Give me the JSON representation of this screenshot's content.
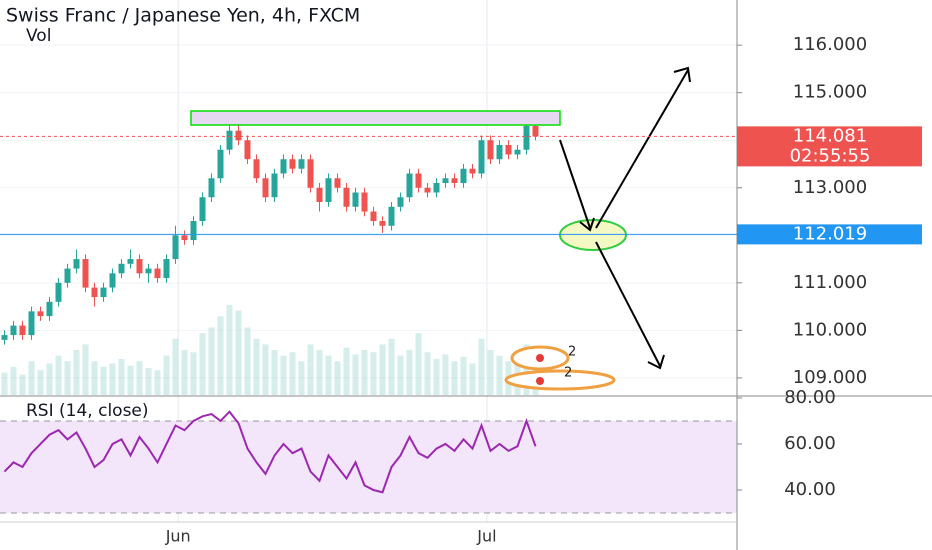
{
  "chart_data": [
    {
      "type": "candlestick",
      "title": "Swiss Franc / Japanese Yen, 4h, FXCM",
      "subtitle": "Vol",
      "up_color": "#26a69a",
      "down_color": "#ef5350",
      "volume_color": "#b2dfdb",
      "open": [
        109.8,
        109.9,
        110.1,
        109.9,
        110.4,
        110.3,
        110.6,
        111.0,
        111.3,
        111.5,
        110.9,
        110.7,
        110.9,
        111.2,
        111.4,
        111.5,
        111.2,
        111.3,
        111.1,
        111.5,
        112.0,
        111.9,
        112.3,
        112.8,
        113.2,
        113.8,
        114.2,
        114.0,
        113.6,
        113.2,
        112.8,
        113.3,
        113.6,
        113.4,
        113.6,
        113.0,
        112.7,
        113.2,
        113.0,
        112.6,
        112.9,
        112.5,
        112.3,
        112.2,
        112.6,
        112.8,
        113.3,
        113.0,
        112.9,
        113.1,
        113.2,
        113.1,
        113.4,
        113.3,
        114.0,
        113.6,
        113.9,
        113.7,
        113.8,
        114.3
      ],
      "high": [
        110.0,
        110.2,
        110.2,
        110.5,
        110.5,
        110.7,
        111.1,
        111.4,
        111.7,
        111.6,
        111.0,
        111.0,
        111.3,
        111.5,
        111.7,
        111.6,
        111.4,
        111.4,
        111.6,
        112.2,
        112.1,
        112.4,
        112.9,
        113.3,
        113.9,
        114.4,
        114.55,
        114.1,
        113.7,
        113.3,
        113.4,
        113.7,
        113.7,
        113.7,
        113.7,
        113.1,
        113.3,
        113.3,
        113.1,
        113.0,
        113.0,
        112.6,
        112.4,
        112.7,
        112.9,
        113.4,
        113.4,
        113.1,
        113.2,
        113.3,
        113.3,
        113.5,
        113.5,
        114.1,
        114.1,
        114.0,
        114.0,
        113.9,
        114.4,
        114.5
      ],
      "low": [
        109.7,
        109.8,
        109.8,
        109.8,
        110.2,
        110.2,
        110.5,
        110.9,
        111.2,
        110.8,
        110.5,
        110.6,
        110.8,
        111.1,
        111.3,
        111.1,
        111.0,
        111.0,
        111.0,
        111.4,
        111.8,
        111.8,
        112.2,
        112.7,
        113.1,
        113.7,
        113.9,
        113.5,
        113.1,
        112.7,
        112.7,
        113.2,
        113.3,
        113.3,
        112.9,
        112.5,
        112.6,
        112.9,
        112.5,
        112.5,
        112.4,
        112.2,
        112.05,
        112.1,
        112.5,
        112.7,
        112.9,
        112.8,
        112.8,
        113.0,
        113.0,
        113.0,
        113.2,
        113.2,
        113.5,
        113.5,
        113.6,
        113.6,
        113.7,
        114.0
      ],
      "close": [
        109.9,
        110.1,
        109.9,
        110.4,
        110.3,
        110.6,
        111.0,
        111.3,
        111.5,
        110.9,
        110.7,
        110.9,
        111.2,
        111.4,
        111.5,
        111.2,
        111.3,
        111.1,
        111.5,
        112.0,
        111.9,
        112.3,
        112.8,
        113.2,
        113.8,
        114.2,
        114.0,
        113.6,
        113.2,
        112.8,
        113.3,
        113.6,
        113.4,
        113.6,
        113.0,
        112.7,
        113.2,
        113.0,
        112.6,
        112.9,
        112.5,
        112.3,
        112.2,
        112.6,
        112.8,
        113.3,
        113.0,
        112.9,
        113.1,
        113.2,
        113.1,
        113.4,
        113.3,
        114.0,
        113.6,
        113.9,
        113.7,
        113.8,
        114.3,
        114.081
      ],
      "volume": [
        20,
        25,
        18,
        30,
        22,
        28,
        35,
        30,
        40,
        45,
        30,
        25,
        28,
        32,
        26,
        30,
        24,
        22,
        35,
        50,
        40,
        38,
        55,
        60,
        70,
        80,
        75,
        60,
        50,
        45,
        40,
        35,
        38,
        30,
        45,
        40,
        35,
        30,
        42,
        36,
        40,
        38,
        45,
        50,
        35,
        40,
        55,
        38,
        32,
        36,
        30,
        34,
        28,
        50,
        40,
        35,
        30,
        32,
        45,
        25
      ],
      "xlim": [
        -0.5,
        81.39
      ],
      "ylim": [
        108.64,
        116.95
      ],
      "xticks": [
        {
          "value": 19.3,
          "label": "Jun"
        },
        {
          "value": 53.6,
          "label": "Jul"
        }
      ],
      "yticks": [
        {
          "value": 109,
          "label": "109.000"
        },
        {
          "value": 110,
          "label": "110.000"
        },
        {
          "value": 111,
          "label": "111.000"
        },
        {
          "value": 112,
          "label": "112.000"
        },
        {
          "value": 113,
          "label": "113.000"
        },
        {
          "value": 114,
          "label": "114.000"
        },
        {
          "value": 115,
          "label": "115.000"
        },
        {
          "value": 116,
          "label": "116.000"
        }
      ],
      "last_price": 114.081,
      "countdown": "02:55:55",
      "horizontal_line": 112.019,
      "badges": [
        "2",
        "2"
      ],
      "grid": true
    },
    {
      "type": "line",
      "title": "RSI (14, close)",
      "color": "#9c27b0",
      "values": [
        48,
        52,
        50,
        56,
        60,
        64,
        66,
        62,
        65,
        58,
        50,
        53,
        60,
        62,
        55,
        63,
        58,
        52,
        60,
        68,
        66,
        70,
        72,
        73,
        70,
        74,
        69,
        58,
        52,
        47,
        55,
        60,
        56,
        58,
        48,
        44,
        55,
        50,
        45,
        52,
        42,
        40,
        39,
        50,
        55,
        63,
        56,
        54,
        58,
        60,
        57,
        62,
        58,
        68,
        57,
        60,
        57,
        59,
        70,
        59
      ],
      "ylim": [
        26.1,
        80.4
      ],
      "band": [
        30,
        70
      ],
      "band_color": "#f3e5fa",
      "yticks": [
        {
          "value": 40,
          "label": "40.00"
        },
        {
          "value": 60,
          "label": "60.00"
        },
        {
          "value": 80,
          "label": "80.00"
        }
      ]
    }
  ]
}
